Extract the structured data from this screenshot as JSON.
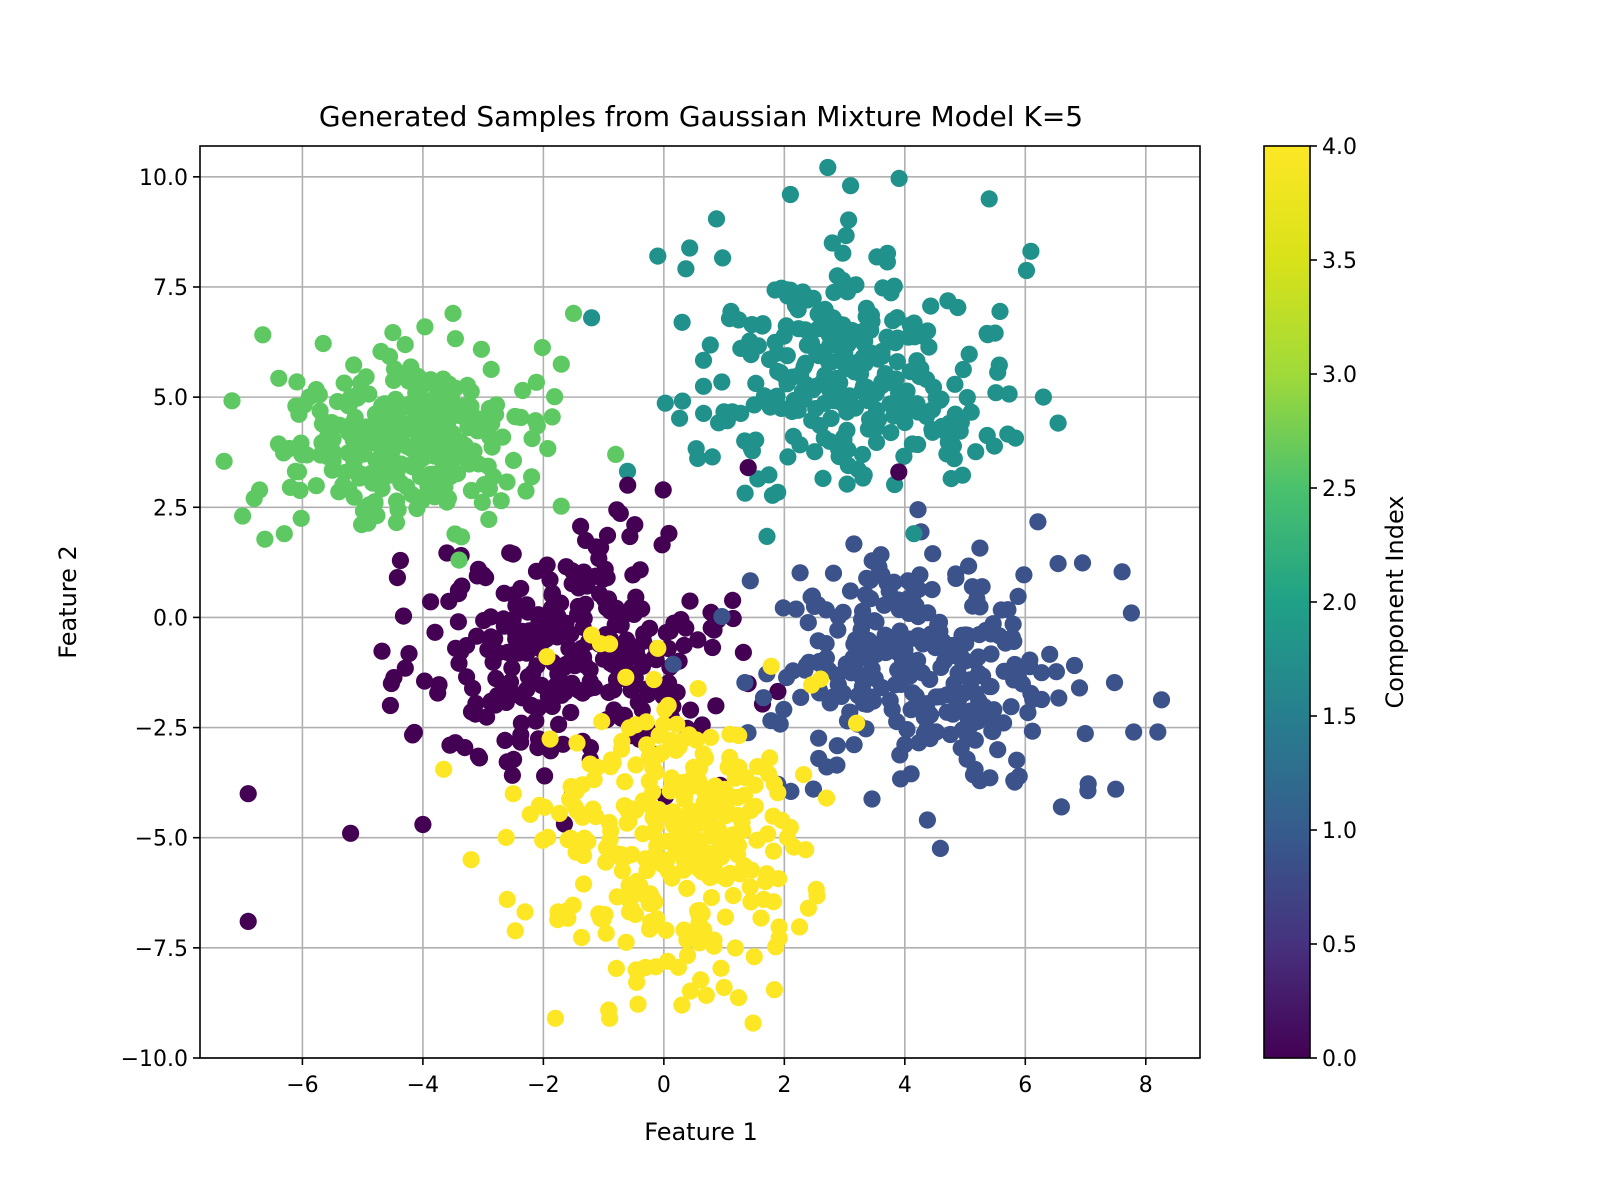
{
  "chart_data": {
    "type": "scatter",
    "title": "Generated Samples from Gaussian Mixture Model K=5",
    "xlabel": "Feature 1",
    "ylabel": "Feature 2",
    "xlim": [
      -7.7,
      8.9
    ],
    "ylim": [
      -10.0,
      10.7
    ],
    "xticks": [
      -6,
      -4,
      -2,
      0,
      2,
      4,
      6,
      8
    ],
    "yticks": [
      -10.0,
      -7.5,
      -5.0,
      -2.5,
      0.0,
      2.5,
      5.0,
      7.5,
      10.0
    ],
    "xtick_labels": [
      "−6",
      "−4",
      "−2",
      "0",
      "2",
      "4",
      "6",
      "8"
    ],
    "ytick_labels": [
      "−10.0",
      "−7.5",
      "−5.0",
      "−2.5",
      "0.0",
      "2.5",
      "5.0",
      "7.5",
      "10.0"
    ],
    "grid": true,
    "colormap": "viridis",
    "colorbar": {
      "label": "Component Index",
      "range": [
        0.0,
        4.0
      ],
      "ticks": [
        0.0,
        0.5,
        1.0,
        1.5,
        2.0,
        2.5,
        3.0,
        3.5,
        4.0
      ],
      "tick_labels": [
        "0.0",
        "0.5",
        "1.0",
        "1.5",
        "2.0",
        "2.5",
        "3.0",
        "3.5",
        "4.0"
      ]
    },
    "colors": {
      "0": "#440154",
      "1": "#3b528b",
      "2": "#21918c",
      "3": "#5ec962",
      "4": "#fde725"
    },
    "components": [
      {
        "component": 0,
        "center": [
          -1.5,
          -0.8
        ],
        "spread": [
          1.4,
          1.3
        ],
        "n": 300
      },
      {
        "component": 1,
        "center": [
          4.2,
          -1.0
        ],
        "spread": [
          1.3,
          1.3
        ],
        "n": 300
      },
      {
        "component": 2,
        "center": [
          3.1,
          5.6
        ],
        "spread": [
          1.2,
          1.4
        ],
        "n": 300
      },
      {
        "component": 3,
        "center": [
          -4.2,
          4.0
        ],
        "spread": [
          1.1,
          1.0
        ],
        "n": 300
      },
      {
        "component": 4,
        "center": [
          0.2,
          -5.0
        ],
        "spread": [
          1.0,
          1.6
        ],
        "n": 300
      }
    ],
    "notable_points": [
      {
        "component": 0,
        "x": -6.9,
        "y": -6.9
      },
      {
        "component": 0,
        "x": -6.9,
        "y": -4.0
      },
      {
        "component": 0,
        "x": -5.2,
        "y": -4.9
      },
      {
        "component": 0,
        "x": -4.0,
        "y": -4.7
      },
      {
        "component": 0,
        "x": -0.6,
        "y": 3.0
      },
      {
        "component": 0,
        "x": 1.4,
        "y": 3.4
      },
      {
        "component": 0,
        "x": 3.9,
        "y": 3.3
      },
      {
        "component": 1,
        "x": 7.5,
        "y": -3.9
      },
      {
        "component": 1,
        "x": 7.8,
        "y": -2.6
      },
      {
        "component": 1,
        "x": 8.2,
        "y": -2.6
      },
      {
        "component": 1,
        "x": 6.6,
        "y": -4.3
      },
      {
        "component": 1,
        "x": 6.9,
        "y": -1.6
      },
      {
        "component": 2,
        "x": -0.1,
        "y": 8.2
      },
      {
        "component": 2,
        "x": 5.4,
        "y": 9.5
      },
      {
        "component": 2,
        "x": 6.3,
        "y": 5.0
      },
      {
        "component": 2,
        "x": 2.1,
        "y": 9.6
      },
      {
        "component": 2,
        "x": 3.1,
        "y": 9.8
      },
      {
        "component": 2,
        "x": -1.2,
        "y": 6.8
      },
      {
        "component": 3,
        "x": -6.8,
        "y": 2.7
      },
      {
        "component": 3,
        "x": -6.3,
        "y": 1.9
      },
      {
        "component": 3,
        "x": -3.5,
        "y": 6.9
      },
      {
        "component": 3,
        "x": -1.5,
        "y": 6.9
      },
      {
        "component": 3,
        "x": -0.8,
        "y": 3.7
      },
      {
        "component": 3,
        "x": -3.4,
        "y": 1.3
      },
      {
        "component": 4,
        "x": -1.8,
        "y": -9.1
      },
      {
        "component": 4,
        "x": -0.9,
        "y": -9.1
      },
      {
        "component": 4,
        "x": 0.3,
        "y": -8.8
      },
      {
        "component": 4,
        "x": 1.0,
        "y": -8.4
      },
      {
        "component": 4,
        "x": -3.2,
        "y": -5.5
      },
      {
        "component": 4,
        "x": -2.6,
        "y": -6.4
      },
      {
        "component": 4,
        "x": 2.4,
        "y": -6.6
      },
      {
        "component": 4,
        "x": 2.7,
        "y": -4.1
      },
      {
        "component": 4,
        "x": 1.5,
        "y": -7.7
      },
      {
        "component": 4,
        "x": -1.2,
        "y": -0.4
      },
      {
        "component": 4,
        "x": -0.9,
        "y": -0.6
      },
      {
        "component": 4,
        "x": -0.1,
        "y": -0.7
      },
      {
        "component": 4,
        "x": 2.6,
        "y": -1.4
      },
      {
        "component": 4,
        "x": 3.2,
        "y": -2.4
      },
      {
        "component": 4,
        "x": -2.5,
        "y": -4.0
      }
    ]
  }
}
